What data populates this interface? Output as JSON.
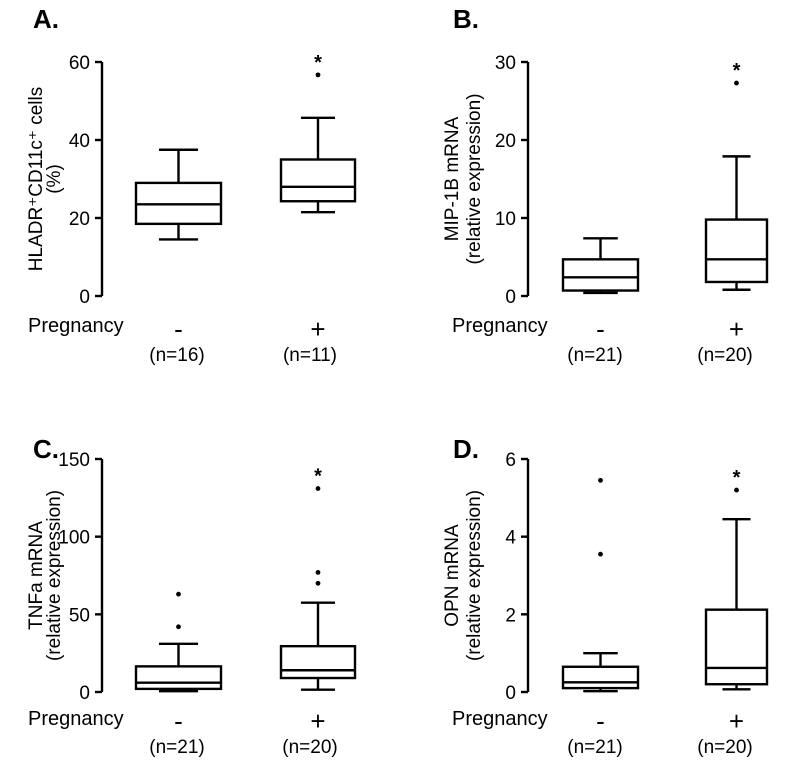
{
  "chart_data": [
    {
      "panel": "A.",
      "type": "box",
      "ylabel_lines": [
        "HLADR⁺CD11c⁺ cells",
        "(%)"
      ],
      "ylim": [
        0,
        60
      ],
      "yticks": [
        0,
        20,
        40,
        60
      ],
      "xlabel": "Pregnancy",
      "categories": [
        {
          "sign": "-",
          "n": "(n=16)",
          "whisker_low": 14.5,
          "q1": 18.5,
          "median": 23.5,
          "q3": 29,
          "whisker_high": 37.5,
          "outliers": [],
          "significant": false
        },
        {
          "sign": "+",
          "n": "(n=11)",
          "whisker_low": 21.5,
          "q1": 24.3,
          "median": 28,
          "q3": 35,
          "whisker_high": 45.7,
          "outliers": [
            56.7
          ],
          "significant": true
        }
      ],
      "annotation": "*"
    },
    {
      "panel": "B.",
      "type": "box",
      "ylabel_lines": [
        "MIP-1B mRNA",
        "(relative expression)"
      ],
      "ylim": [
        0,
        30
      ],
      "yticks": [
        0,
        10,
        20,
        30
      ],
      "xlabel": "Pregnancy",
      "categories": [
        {
          "sign": "-",
          "n": "(n=21)",
          "whisker_low": 0.4,
          "q1": 0.7,
          "median": 2.4,
          "q3": 4.7,
          "whisker_high": 7.4,
          "outliers": [],
          "significant": false
        },
        {
          "sign": "+",
          "n": "(n=20)",
          "whisker_low": 0.8,
          "q1": 1.8,
          "median": 4.7,
          "q3": 9.8,
          "whisker_high": 17.9,
          "outliers": [
            27.3
          ],
          "significant": true
        }
      ],
      "annotation": "*"
    },
    {
      "panel": "C.",
      "type": "box",
      "ylabel_lines": [
        "TNFa mRNA",
        "(relative expression)"
      ],
      "ylim": [
        0,
        150
      ],
      "yticks": [
        0,
        50,
        100,
        150
      ],
      "xlabel": "Pregnancy",
      "categories": [
        {
          "sign": "-",
          "n": "(n=21)",
          "whisker_low": 0.5,
          "q1": 2,
          "median": 6,
          "q3": 16.5,
          "whisker_high": 31,
          "outliers": [
            42,
            63
          ],
          "significant": false
        },
        {
          "sign": "+",
          "n": "(n=20)",
          "whisker_low": 1.5,
          "q1": 9,
          "median": 14,
          "q3": 29.5,
          "whisker_high": 57.5,
          "outliers": [
            70,
            77,
            131
          ],
          "significant": true
        }
      ],
      "annotation": "*"
    },
    {
      "panel": "D.",
      "type": "box",
      "ylabel_lines": [
        "OPN mRNA",
        "(relative expression)"
      ],
      "ylim": [
        0,
        6
      ],
      "yticks": [
        0,
        2,
        4,
        6
      ],
      "xlabel": "Pregnancy",
      "categories": [
        {
          "sign": "-",
          "n": "(n=21)",
          "whisker_low": 0.02,
          "q1": 0.1,
          "median": 0.25,
          "q3": 0.65,
          "whisker_high": 1.0,
          "outliers": [
            3.55,
            5.45
          ],
          "significant": false
        },
        {
          "sign": "+",
          "n": "(n=20)",
          "whisker_low": 0.07,
          "q1": 0.2,
          "median": 0.62,
          "q3": 2.12,
          "whisker_high": 4.45,
          "outliers": [
            5.2
          ],
          "significant": true
        }
      ],
      "annotation": "*"
    }
  ]
}
